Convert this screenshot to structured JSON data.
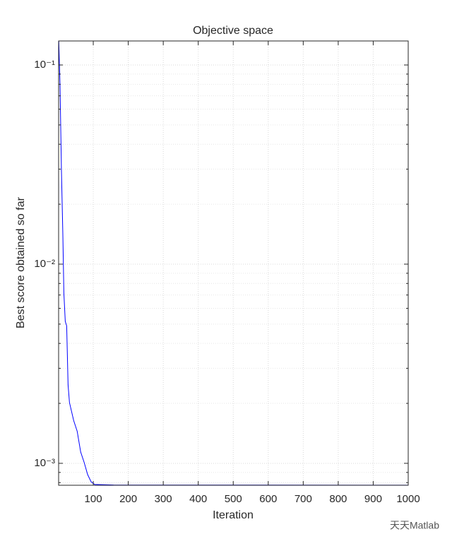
{
  "chart_data": {
    "type": "line",
    "title": "Objective space",
    "xlabel": "Iteration",
    "ylabel": "Best score obtained so far",
    "series": [
      {
        "name": "Best score",
        "color": "#0000ff",
        "x": [
          1,
          5,
          9,
          13,
          16,
          20,
          24,
          28,
          32,
          44,
          54,
          64,
          74,
          84,
          94,
          104,
          158,
          1000
        ],
        "values": [
          0.14,
          0.0796,
          0.0298,
          0.0143,
          0.00716,
          0.00516,
          0.0049,
          0.00248,
          0.00202,
          0.00164,
          0.00145,
          0.00114,
          0.00101,
          0.000877,
          0.000807,
          0.000783,
          0.000778,
          0.000777
        ]
      }
    ],
    "xlim": [
      1,
      1000
    ],
    "xticks": [
      100,
      200,
      300,
      400,
      500,
      600,
      700,
      800,
      900,
      1000
    ],
    "ylim": [
      0.000776,
      0.132
    ],
    "ylog": true,
    "yticks": [
      {
        "value": 0.001,
        "label": "10⁻³"
      },
      {
        "value": 0.01,
        "label": "10⁻²"
      },
      {
        "value": 0.1,
        "label": "10⁻¹"
      }
    ],
    "yminorticks": [
      0.0008,
      0.0009,
      0.002,
      0.003,
      0.004,
      0.005,
      0.006,
      0.007,
      0.008,
      0.009,
      0.02,
      0.03,
      0.04,
      0.05,
      0.06,
      0.07,
      0.08,
      0.09
    ],
    "grid": true,
    "minor_grid": true
  },
  "watermark": "天天Matlab"
}
